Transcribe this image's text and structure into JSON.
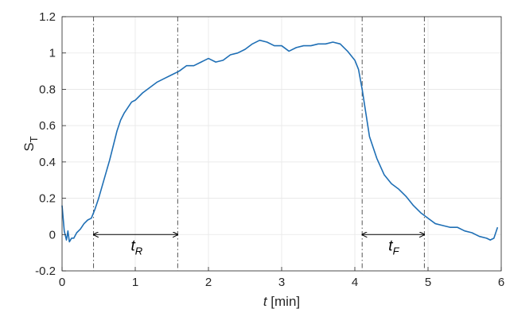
{
  "chart_data": {
    "type": "line",
    "title": "",
    "xlabel_var": "t",
    "xlabel_unit": " [min]",
    "ylabel_main": "S",
    "ylabel_sub": "T",
    "xlim": [
      0,
      6
    ],
    "ylim": [
      -0.2,
      1.2
    ],
    "xticks": [
      0,
      1,
      2,
      3,
      4,
      5,
      6
    ],
    "xtick_labels": [
      "0",
      "1",
      "2",
      "3",
      "4",
      "5",
      "6"
    ],
    "yticks": [
      -0.2,
      0,
      0.2,
      0.4,
      0.6,
      0.8,
      1.0,
      1.2
    ],
    "ytick_labels": [
      "-0.2",
      "0",
      "0.2",
      "0.4",
      "0.6",
      "0.8",
      "1",
      "1.2"
    ],
    "grid": true,
    "line_color": "#1f6fb5",
    "series": [
      {
        "x": [
          0.0,
          0.03,
          0.06,
          0.08,
          0.1,
          0.13,
          0.16,
          0.2,
          0.25,
          0.3,
          0.35,
          0.4,
          0.45,
          0.5,
          0.55,
          0.6,
          0.65,
          0.7,
          0.75,
          0.8,
          0.85,
          0.9,
          0.95,
          1.0,
          1.1,
          1.2,
          1.3,
          1.4,
          1.5,
          1.6,
          1.7,
          1.8,
          1.9,
          2.0,
          2.1,
          2.2,
          2.3,
          2.4,
          2.5,
          2.6,
          2.7,
          2.8,
          2.9,
          3.0,
          3.1,
          3.2,
          3.3,
          3.4,
          3.5,
          3.6,
          3.7,
          3.8,
          3.9,
          4.0,
          4.05,
          4.1,
          4.15,
          4.2,
          4.3,
          4.4,
          4.5,
          4.6,
          4.7,
          4.8,
          4.9,
          5.0,
          5.1,
          5.2,
          5.3,
          5.4,
          5.5,
          5.6,
          5.7,
          5.8,
          5.85,
          5.9,
          5.95
        ],
        "y": [
          0.16,
          0.02,
          -0.03,
          0.02,
          -0.04,
          -0.02,
          -0.02,
          0.01,
          0.03,
          0.06,
          0.08,
          0.09,
          0.14,
          0.2,
          0.27,
          0.34,
          0.41,
          0.49,
          0.57,
          0.63,
          0.67,
          0.7,
          0.73,
          0.74,
          0.78,
          0.81,
          0.84,
          0.86,
          0.88,
          0.9,
          0.93,
          0.93,
          0.95,
          0.97,
          0.95,
          0.96,
          0.99,
          1.0,
          1.02,
          1.05,
          1.07,
          1.06,
          1.04,
          1.04,
          1.01,
          1.03,
          1.04,
          1.04,
          1.05,
          1.05,
          1.06,
          1.05,
          1.01,
          0.96,
          0.91,
          0.8,
          0.67,
          0.54,
          0.42,
          0.33,
          0.28,
          0.25,
          0.21,
          0.16,
          0.12,
          0.09,
          0.06,
          0.05,
          0.04,
          0.04,
          0.02,
          0.01,
          -0.01,
          -0.02,
          -0.03,
          -0.02,
          0.04
        ]
      }
    ],
    "vlines": [
      0.43,
      1.58,
      4.1,
      4.95
    ],
    "annotations": [
      {
        "from": 0.43,
        "to": 1.58,
        "y": 0.0,
        "label_main": "t",
        "label_sub": "R"
      },
      {
        "from": 4.1,
        "to": 4.95,
        "y": 0.0,
        "label_main": "t",
        "label_sub": "F"
      }
    ]
  }
}
